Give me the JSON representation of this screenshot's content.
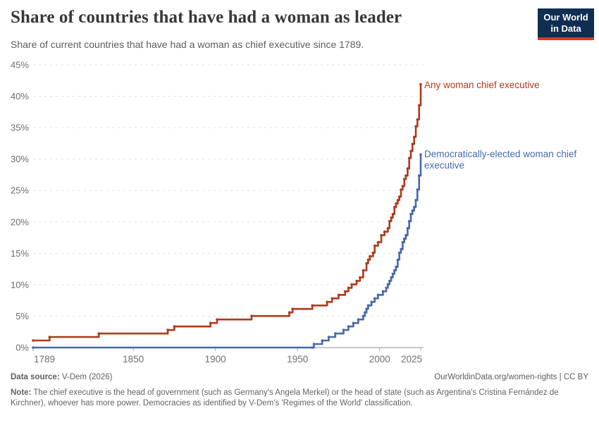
{
  "header": {
    "title": "Share of countries that have had a woman as leader",
    "subtitle": "Share of current countries that have had a woman as chief executive since 1789.",
    "logo": {
      "line1": "Our World",
      "line2": "in Data",
      "bg_color": "#0f2e52",
      "bar_color": "#d73b2a",
      "text_color": "#ffffff"
    }
  },
  "chart_data": {
    "type": "line",
    "line_style": "step-after",
    "title": "Share of countries that have had a woman as leader",
    "xlabel": "",
    "ylabel": "",
    "x": {
      "range": [
        1789,
        2025
      ],
      "ticks": [
        1789,
        1850,
        1900,
        1950,
        2000,
        2025
      ]
    },
    "y": {
      "range": [
        0,
        45
      ],
      "ticks": [
        0,
        5,
        10,
        15,
        20,
        25,
        30,
        35,
        40,
        45
      ],
      "unit": "%"
    },
    "grid": true,
    "legend_position": "end-of-line",
    "style": {
      "grid_color": "#e3e3e3",
      "axis_color": "#a8a8a8",
      "tick_label_color": "#6e6e6e"
    },
    "series": [
      {
        "key": "any-woman-chief-executive",
        "name": "Any woman chief executive",
        "color": "#ad3a1c",
        "end_value_pct": 41.9,
        "points": [
          [
            1789,
            1.12
          ],
          [
            1799,
            1.68
          ],
          [
            1829,
            2.23
          ],
          [
            1871,
            2.79
          ],
          [
            1875,
            3.35
          ],
          [
            1897,
            3.91
          ],
          [
            1901,
            4.47
          ],
          [
            1922,
            5.03
          ],
          [
            1945,
            5.59
          ],
          [
            1947,
            6.15
          ],
          [
            1959,
            6.7
          ],
          [
            1968,
            7.26
          ],
          [
            1971,
            7.82
          ],
          [
            1975,
            8.38
          ],
          [
            1979,
            8.94
          ],
          [
            1981,
            9.5
          ],
          [
            1983,
            10.06
          ],
          [
            1986,
            10.61
          ],
          [
            1988,
            11.17
          ],
          [
            1990,
            12.29
          ],
          [
            1992,
            13.41
          ],
          [
            1993,
            13.97
          ],
          [
            1994,
            14.53
          ],
          [
            1996,
            15.08
          ],
          [
            1997,
            16.2
          ],
          [
            1999,
            16.76
          ],
          [
            2001,
            17.88
          ],
          [
            2003,
            18.44
          ],
          [
            2005,
            18.99
          ],
          [
            2006,
            20.11
          ],
          [
            2007,
            20.67
          ],
          [
            2008,
            21.23
          ],
          [
            2009,
            22.35
          ],
          [
            2010,
            22.91
          ],
          [
            2011,
            23.46
          ],
          [
            2012,
            24.02
          ],
          [
            2013,
            25.14
          ],
          [
            2014,
            25.7
          ],
          [
            2015,
            26.82
          ],
          [
            2016,
            27.37
          ],
          [
            2017,
            28.49
          ],
          [
            2018,
            30.17
          ],
          [
            2019,
            31.28
          ],
          [
            2020,
            32.4
          ],
          [
            2021,
            33.52
          ],
          [
            2022,
            35.2
          ],
          [
            2023,
            36.31
          ],
          [
            2024,
            38.55
          ],
          [
            2025,
            41.9
          ]
        ]
      },
      {
        "key": "democratically-elected-woman-chief-executive",
        "name": "Democratically-elected woman chief executive",
        "color": "#4869a7",
        "end_value_pct": 30.7,
        "points": [
          [
            1789,
            0
          ],
          [
            1959,
            0
          ],
          [
            1960,
            0.56
          ],
          [
            1965,
            1.12
          ],
          [
            1969,
            1.68
          ],
          [
            1973,
            2.23
          ],
          [
            1978,
            2.79
          ],
          [
            1981,
            3.35
          ],
          [
            1984,
            3.91
          ],
          [
            1987,
            4.47
          ],
          [
            1990,
            5.03
          ],
          [
            1991,
            5.59
          ],
          [
            1992,
            6.15
          ],
          [
            1993,
            6.7
          ],
          [
            1995,
            7.26
          ],
          [
            1997,
            7.82
          ],
          [
            1999,
            8.38
          ],
          [
            2002,
            8.94
          ],
          [
            2004,
            9.5
          ],
          [
            2005,
            10.06
          ],
          [
            2006,
            10.61
          ],
          [
            2007,
            11.17
          ],
          [
            2008,
            11.73
          ],
          [
            2009,
            12.29
          ],
          [
            2010,
            12.85
          ],
          [
            2011,
            13.97
          ],
          [
            2012,
            15.08
          ],
          [
            2013,
            15.64
          ],
          [
            2014,
            16.76
          ],
          [
            2015,
            17.32
          ],
          [
            2016,
            17.88
          ],
          [
            2017,
            18.99
          ],
          [
            2018,
            20.11
          ],
          [
            2019,
            21.23
          ],
          [
            2020,
            21.79
          ],
          [
            2021,
            22.35
          ],
          [
            2022,
            23.46
          ],
          [
            2023,
            25.14
          ],
          [
            2024,
            27.37
          ],
          [
            2025,
            30.73
          ]
        ]
      }
    ]
  },
  "footer": {
    "data_source_label": "Data source:",
    "data_source_value": " V-Dem (2026)",
    "link_text": "OurWorldinData.org/women-rights | CC BY",
    "note_label": "Note:",
    "note_text": " The chief executive is the head of government (such as Germany's Angela Merkel) or the head of state (such as Argentina's Cristina Fernández de Kirchner), whoever has more power. Democracies as identified by V-Dem's 'Regimes of the World' classification."
  }
}
